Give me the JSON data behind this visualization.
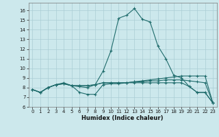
{
  "xlabel": "Humidex (Indice chaleur)",
  "bg_color": "#cce8ec",
  "grid_color": "#aacdd4",
  "line_color": "#1e6b6b",
  "xlim": [
    -0.5,
    23.5
  ],
  "ylim": [
    6.0,
    16.8
  ],
  "yticks": [
    6,
    7,
    8,
    9,
    10,
    11,
    12,
    13,
    14,
    15,
    16
  ],
  "xticks": [
    0,
    1,
    2,
    3,
    4,
    5,
    6,
    7,
    8,
    9,
    10,
    11,
    12,
    13,
    14,
    15,
    16,
    17,
    18,
    19,
    20,
    21,
    22,
    23
  ],
  "line1": [
    7.8,
    7.5,
    8.0,
    8.3,
    8.5,
    8.2,
    8.2,
    8.2,
    8.3,
    9.7,
    11.8,
    15.2,
    15.5,
    16.2,
    15.1,
    14.8,
    12.3,
    11.0,
    9.3,
    9.0,
    8.1,
    7.5,
    7.5,
    6.4
  ],
  "line2": [
    7.8,
    7.5,
    8.0,
    8.3,
    8.4,
    8.2,
    7.5,
    7.3,
    7.3,
    8.3,
    8.4,
    8.4,
    8.5,
    8.6,
    8.7,
    8.8,
    8.9,
    9.0,
    9.1,
    9.2,
    9.2,
    9.2,
    9.2,
    6.4
  ],
  "line3": [
    7.8,
    7.5,
    8.0,
    8.3,
    8.4,
    8.2,
    8.1,
    8.0,
    8.3,
    8.5,
    8.5,
    8.5,
    8.5,
    8.6,
    8.6,
    8.7,
    8.7,
    8.8,
    8.8,
    8.8,
    8.7,
    8.6,
    8.5,
    6.4
  ],
  "line4": [
    7.8,
    7.5,
    8.0,
    8.3,
    8.4,
    8.2,
    8.2,
    8.2,
    8.3,
    8.5,
    8.5,
    8.5,
    8.5,
    8.5,
    8.5,
    8.5,
    8.5,
    8.5,
    8.5,
    8.5,
    8.1,
    7.5,
    7.5,
    6.4
  ]
}
